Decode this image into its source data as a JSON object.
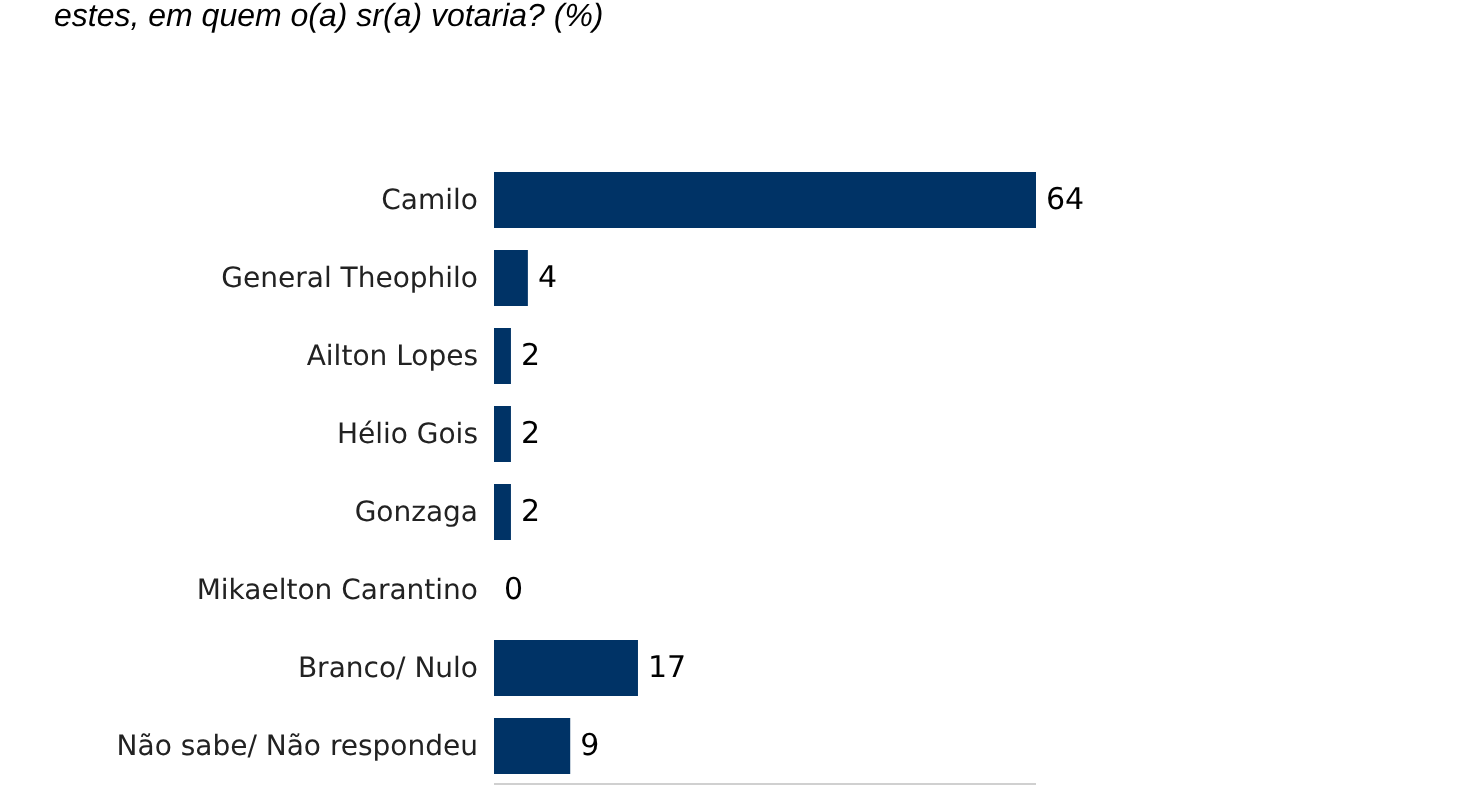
{
  "chart_data": {
    "type": "bar",
    "orientation": "horizontal",
    "title": "estes, em quem o(a) sr(a) votaria? (%)",
    "categories": [
      "Camilo",
      "General Theophilo",
      "Ailton Lopes",
      "Hélio Gois",
      "Gonzaga",
      "Mikaelton Carantino",
      "Branco/ Nulo",
      "Não sabe/ Não respondeu"
    ],
    "values": [
      64,
      4,
      2,
      2,
      2,
      0,
      17,
      9
    ],
    "color": "#003366",
    "data_labels": true,
    "tick_labels": "y",
    "grid": false,
    "legend": false
  }
}
